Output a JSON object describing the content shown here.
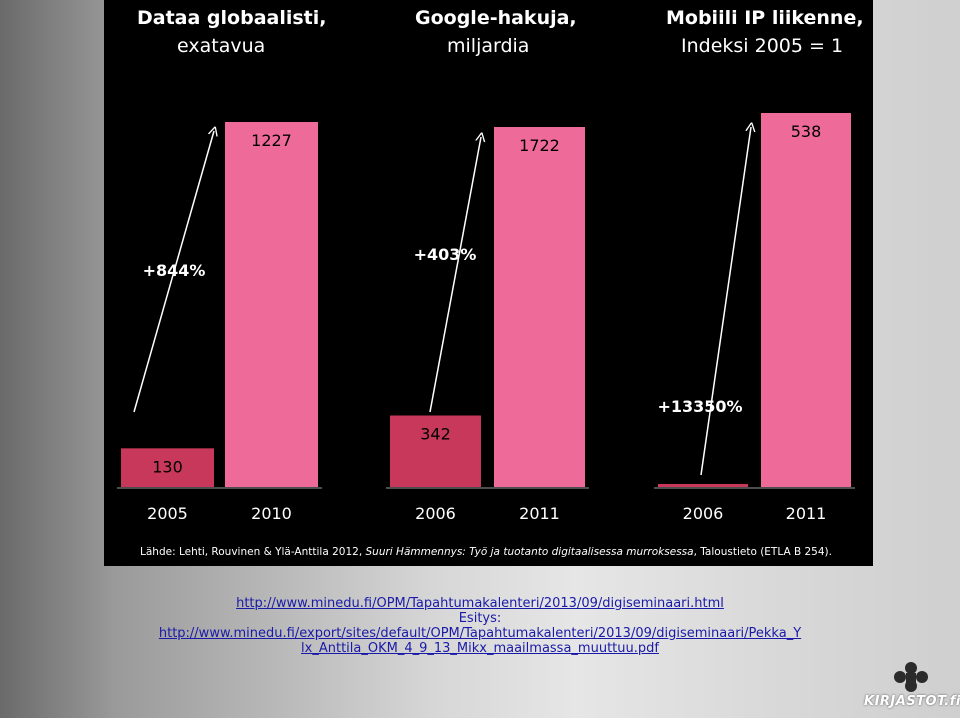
{
  "chart_data": [
    {
      "type": "bar",
      "title": "Dataa globaalisti,",
      "subtitle": "exatavua",
      "categories": [
        "2005",
        "2010"
      ],
      "values": [
        130,
        1227
      ],
      "value_labels": [
        "130",
        "1227"
      ],
      "growth_label": "+844%",
      "bar_colors": [
        "#c8385a",
        "#ee6a98"
      ]
    },
    {
      "type": "bar",
      "title": "Google-hakuja,",
      "subtitle": "miljardia",
      "categories": [
        "2006",
        "2011"
      ],
      "values": [
        342,
        1722
      ],
      "value_labels": [
        "342",
        "1722"
      ],
      "growth_label": "+403%",
      "bar_colors": [
        "#c8385a",
        "#ee6a98"
      ]
    },
    {
      "type": "bar",
      "title": "Mobiili IP liikenne,",
      "subtitle": "Indeksi 2005 = 1",
      "categories": [
        "2006",
        "2011"
      ],
      "values": [
        4,
        538
      ],
      "value_labels": [
        "",
        "538"
      ],
      "growth_label": "+13350%",
      "bar_colors": [
        "#c8385a",
        "#ee6a98"
      ]
    }
  ],
  "source": {
    "prefix": "Lähde:  Lehti, Rouvinen & Ylä-Anttila 2012, ",
    "italic": "Suuri Hämmennys: Työ ja tuotanto digitaalisessa murroksessa",
    "suffix": ", Taloustieto  (ETLA B 254)."
  },
  "links": {
    "url1": "http://www.minedu.fi/OPM/Tapahtumakalenteri/2013/09/digiseminaari.html",
    "esitys_label": "Esitys:",
    "url2_line1": "http://www.minedu.fi/export/sites/default/OPM/Tapahtumakalenteri/2013/09/digiseminaari/Pekka_Y",
    "url2_line2": "lx_Anttila_OKM_4_9_13_Mikx_maailmassa_muuttuu.pdf"
  },
  "logo": {
    "text": "KIRJASTOT.fi",
    "icon": "kirjastot-logo-icon"
  },
  "colors": {
    "background": "#000000",
    "bar_dark": "#c8385a",
    "bar_light": "#ee6a98",
    "text": "#ffffff",
    "link": "#1a1aa8"
  }
}
